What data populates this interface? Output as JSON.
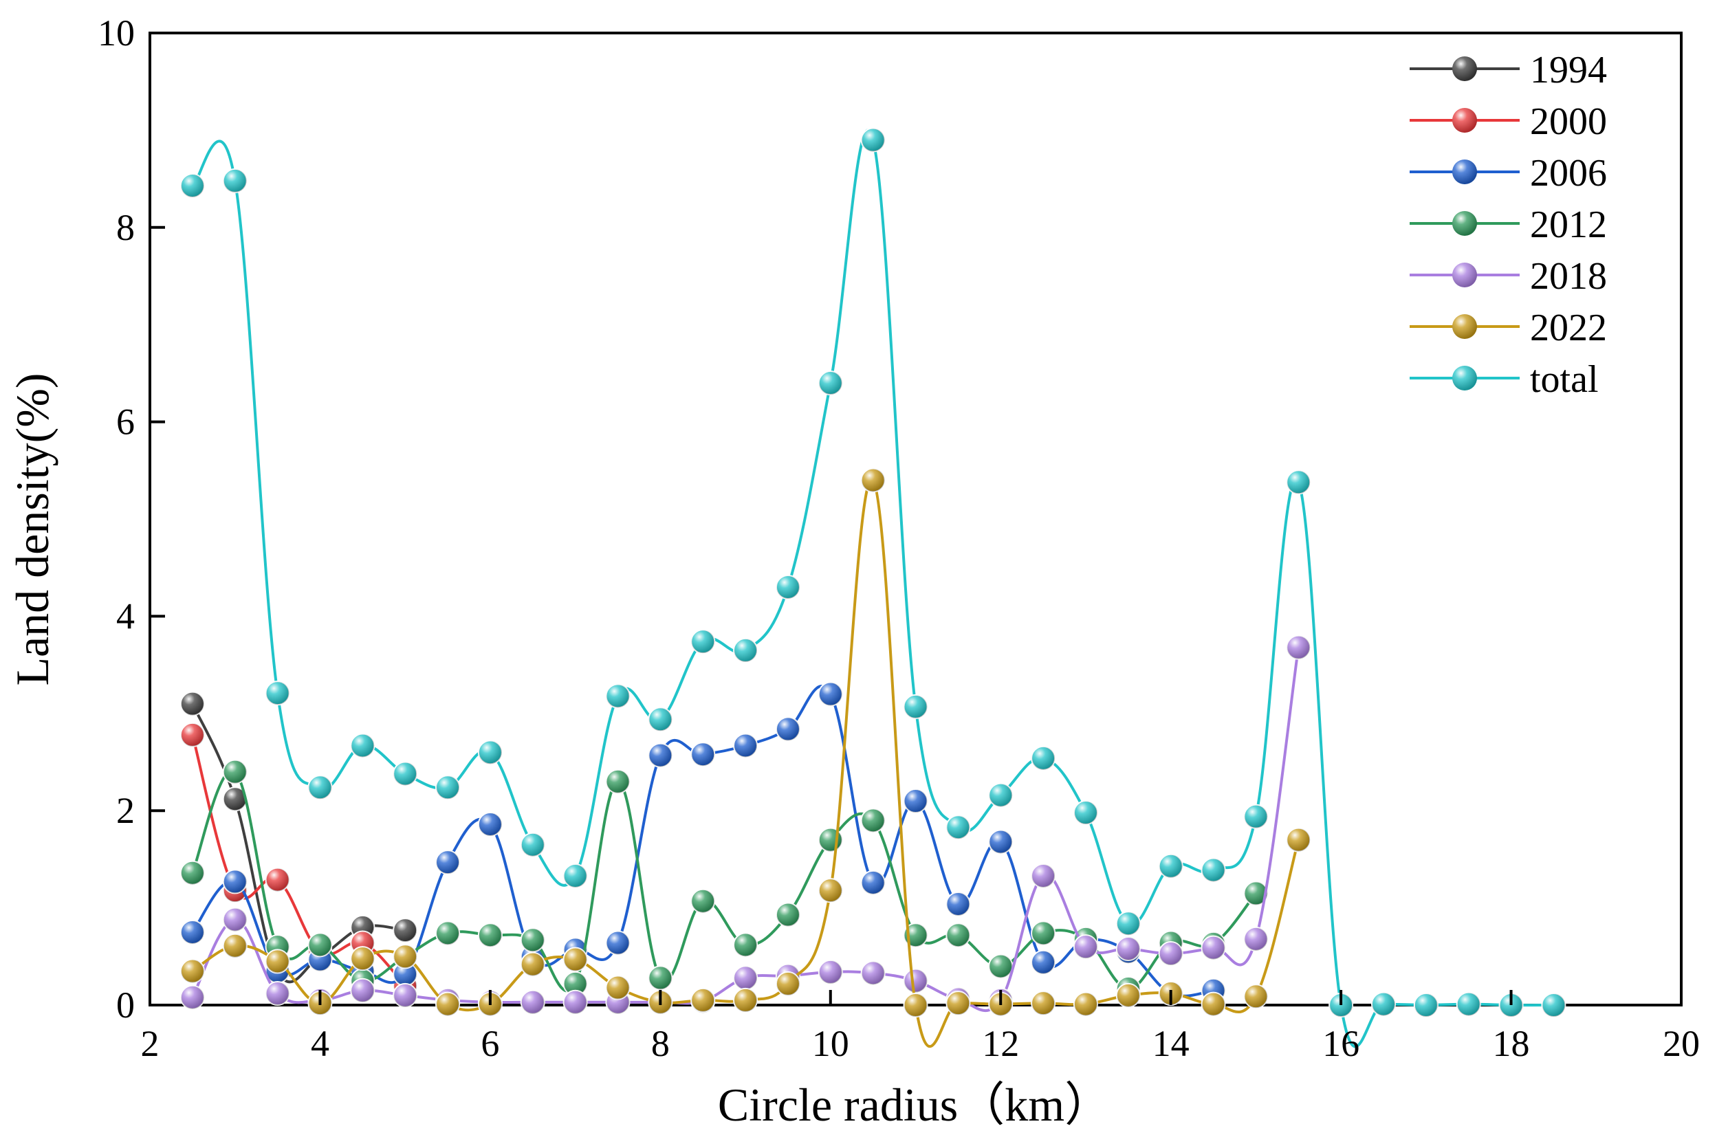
{
  "chart_data": {
    "type": "line",
    "title": "",
    "xlabel": "Circle radius（km）",
    "ylabel": "Land density(%)",
    "xlim": [
      2,
      20
    ],
    "ylim": [
      0,
      10
    ],
    "xticks": [
      "2",
      "4",
      "6",
      "8",
      "10",
      "12",
      "14",
      "16",
      "18",
      "20"
    ],
    "yticks": [
      "0",
      "2",
      "4",
      "6",
      "8",
      "10"
    ],
    "legend_position": "top-right",
    "series": [
      {
        "name": "1994",
        "color": "#3f3f3f",
        "x": [
          2.5,
          3,
          3.5,
          4,
          4.5,
          5
        ],
        "values": [
          3.1,
          2.12,
          0.35,
          0.5,
          0.8,
          0.77
        ]
      },
      {
        "name": "2000",
        "color": "#e8383a",
        "x": [
          2.5,
          3,
          3.5,
          4,
          4.5,
          5
        ],
        "values": [
          2.78,
          1.18,
          1.29,
          0.55,
          0.64,
          0.2
        ]
      },
      {
        "name": "2006",
        "color": "#1f5fcf",
        "x": [
          2.5,
          3,
          3.5,
          4,
          4.5,
          5,
          5.5,
          6,
          6.5,
          7,
          7.5,
          8,
          8.5,
          9,
          9.5,
          10,
          10.5,
          11,
          11.5,
          12,
          12.5,
          13,
          13.5,
          14,
          14.5
        ],
        "values": [
          0.75,
          1.27,
          0.35,
          0.47,
          0.35,
          0.32,
          1.47,
          1.86,
          0.5,
          0.57,
          0.64,
          2.57,
          2.58,
          2.67,
          2.84,
          3.2,
          1.26,
          2.1,
          1.04,
          1.68,
          0.44,
          0.67,
          0.55,
          0.12,
          0.15
        ]
      },
      {
        "name": "2012",
        "color": "#2f9a5c",
        "x": [
          2.5,
          3,
          3.5,
          4,
          4.5,
          5,
          5.5,
          6,
          6.5,
          7,
          7.5,
          8,
          8.5,
          9,
          9.5,
          10,
          10.5,
          11,
          11.5,
          12,
          12.5,
          13,
          13.5,
          14,
          14.5,
          15
        ],
        "values": [
          1.36,
          2.4,
          0.6,
          0.62,
          0.25,
          0.5,
          0.74,
          0.72,
          0.67,
          0.22,
          2.3,
          0.28,
          1.07,
          0.62,
          0.93,
          1.7,
          1.9,
          0.72,
          0.72,
          0.4,
          0.74,
          0.68,
          0.17,
          0.64,
          0.63,
          1.15
        ]
      },
      {
        "name": "2018",
        "color": "#a97ee0",
        "x": [
          2.5,
          3,
          3.5,
          4,
          4.5,
          5,
          5.5,
          6,
          6.5,
          7,
          7.5,
          8,
          8.5,
          9,
          9.5,
          10,
          10.5,
          11,
          11.5,
          12,
          12.5,
          13,
          13.5,
          14,
          14.5,
          15,
          15.5
        ],
        "values": [
          0.08,
          0.88,
          0.12,
          0.05,
          0.15,
          0.1,
          0.05,
          0.03,
          0.03,
          0.03,
          0.03,
          0.03,
          0.04,
          0.28,
          0.3,
          0.34,
          0.33,
          0.25,
          0.06,
          0.05,
          1.33,
          0.6,
          0.58,
          0.53,
          0.59,
          0.68,
          3.68
        ]
      },
      {
        "name": "2022",
        "color": "#c89a17",
        "x": [
          2.5,
          3,
          3.5,
          4,
          4.5,
          5,
          5.5,
          6,
          6.5,
          7,
          7.5,
          8,
          8.5,
          9,
          9.5,
          10,
          10.5,
          11,
          11.5,
          12,
          12.5,
          13,
          13.5,
          14,
          14.5,
          15,
          15.5
        ],
        "values": [
          0.35,
          0.61,
          0.45,
          0.02,
          0.48,
          0.5,
          0.01,
          0.01,
          0.42,
          0.47,
          0.18,
          0.03,
          0.05,
          0.05,
          0.22,
          1.18,
          5.4,
          0.0,
          0.02,
          0.01,
          0.02,
          0.01,
          0.1,
          0.12,
          0.01,
          0.09,
          1.7
        ]
      },
      {
        "name": "total",
        "color": "#21c4c9",
        "x": [
          2.5,
          3,
          3.5,
          4,
          4.5,
          5,
          5.5,
          6,
          6.5,
          7,
          7.5,
          8,
          8.5,
          9,
          9.5,
          10,
          10.5,
          11,
          11.5,
          12,
          12.5,
          13,
          13.5,
          14,
          14.5,
          15,
          15.5,
          16,
          16.5,
          17,
          17.5,
          18,
          18.5
        ],
        "values": [
          8.43,
          8.48,
          3.21,
          2.24,
          2.67,
          2.38,
          2.24,
          2.6,
          1.65,
          1.33,
          3.18,
          2.94,
          3.74,
          3.65,
          4.3,
          6.4,
          8.9,
          3.07,
          1.83,
          2.16,
          2.54,
          1.98,
          0.84,
          1.43,
          1.39,
          1.94,
          5.38,
          0.0,
          0.01,
          0.0,
          0.01,
          0.0,
          0.0
        ]
      }
    ]
  }
}
